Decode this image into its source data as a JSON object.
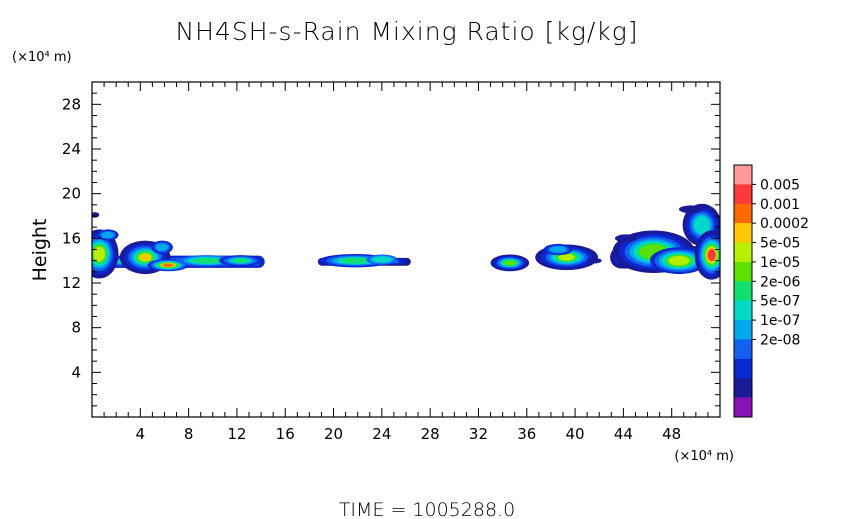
{
  "chart_data": {
    "type": "heatmap",
    "title": "NH4SH-s-Rain Mixing Ratio [kg/kg]",
    "xlabel": "",
    "ylabel": "Height",
    "x_unit": "(×10⁴ m)",
    "y_unit": "(×10⁴ m)",
    "xlim": [
      0,
      52
    ],
    "ylim": [
      0,
      30
    ],
    "x_ticks": [
      4,
      8,
      12,
      16,
      20,
      24,
      28,
      32,
      36,
      40,
      44,
      48
    ],
    "y_ticks": [
      4,
      8,
      12,
      16,
      20,
      24,
      28
    ],
    "footer": "TIME = 1005288.0",
    "colorbar": {
      "labels": [
        "0.005",
        "0.001",
        "0.0002",
        "5e-05",
        "1e-05",
        "2e-06",
        "5e-07",
        "1e-07",
        "2e-08"
      ],
      "colors": [
        "#ff9a9a",
        "#ff3a3a",
        "#ff6a00",
        "#ffc800",
        "#b8ee00",
        "#5ce000",
        "#10e070",
        "#00d8c8",
        "#00a8ee",
        "#1460f0",
        "#0a28d0",
        "#1a1a98",
        "#8a10b8"
      ]
    },
    "regions": [
      {
        "x": [
          0,
          14.2
        ],
        "y": [
          12.9,
          16.9
        ],
        "level": "1e-05"
      },
      {
        "x": [
          18.6,
          26.5
        ],
        "y": [
          13.2,
          14.7
        ],
        "level": "2e-06"
      },
      {
        "x": [
          33.3,
          36.3
        ],
        "y": [
          13.0,
          14.6
        ],
        "level": "2e-06"
      },
      {
        "x": [
          37.3,
          42.5
        ],
        "y": [
          12.8,
          15.6
        ],
        "level": "1e-05"
      },
      {
        "x": [
          42.8,
          52
        ],
        "y": [
          12.4,
          19.0
        ],
        "level": "0.001"
      }
    ]
  }
}
